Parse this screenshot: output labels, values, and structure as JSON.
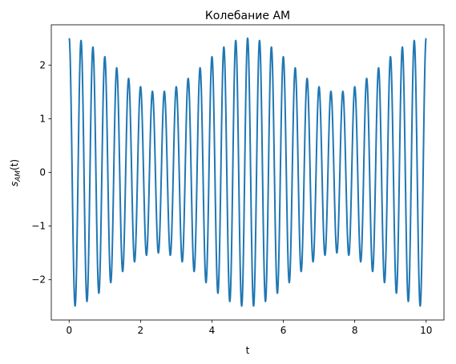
{
  "chart_data": {
    "type": "line",
    "title": "Колебание AM",
    "xlabel": "t",
    "ylabel": "s_AM(t)",
    "ylabel_parts": {
      "symbol": "s",
      "subscript": "AM",
      "suffix": "(t)"
    },
    "xlim": [
      -0.5,
      10.5
    ],
    "ylim": [
      -2.75,
      2.75
    ],
    "xticks": [
      0,
      2,
      4,
      6,
      8,
      10
    ],
    "xtick_labels": [
      "0",
      "2",
      "4",
      "6",
      "8",
      "10"
    ],
    "yticks": [
      -2,
      -1,
      0,
      1,
      2
    ],
    "ytick_labels": [
      "−2",
      "−1",
      "0",
      "1",
      "2"
    ],
    "grid": false,
    "series": [
      {
        "color": "#1f77b4",
        "carrier_amplitude": 2,
        "carrier_frequency_hz": 3,
        "modulation_index": 0.25,
        "modulation_frequency_hz": 0.2,
        "t_range": [
          0,
          10
        ],
        "formula": "s(t) = 2·(1 + 0.25·cos(2π·0.2·t))·cos(2π·3·t)"
      }
    ]
  }
}
